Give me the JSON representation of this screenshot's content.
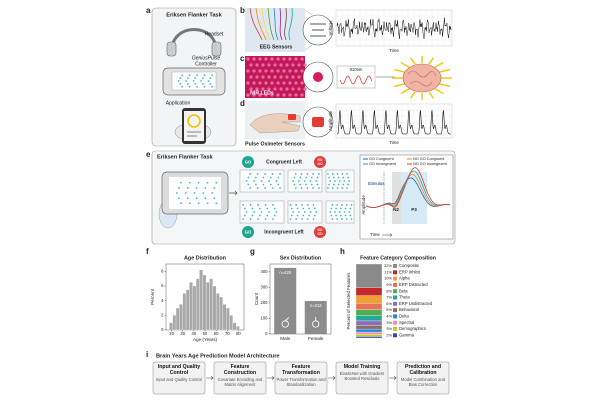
{
  "panel_a": {
    "label": "a",
    "title": "Eriksen Flanker Task",
    "headset": "Headset",
    "controller": [
      "GeniusPulse",
      "Controller"
    ],
    "application": "Application"
  },
  "panel_b": {
    "label": "b",
    "sensor": "EEG Sensors",
    "y_label": "Voltage",
    "x_label": "Time"
  },
  "panel_c": {
    "label": "c",
    "sensor": "NIR LEDs",
    "wavelength": "810nm"
  },
  "panel_d": {
    "label": "d",
    "sensor": "Pulse Oximeter Sensors",
    "y_label": "Amplitude",
    "x_label": "Time"
  },
  "panel_e": {
    "label": "e",
    "title": "Eriksen Flanker Task",
    "go": "GO",
    "no_go": [
      "NO",
      "GO"
    ],
    "congruent": "Congruent Left",
    "incongruent": "Incongruent Left",
    "legend": [
      {
        "name": "GO Congruent",
        "color": "#1565c0"
      },
      {
        "name": "NO GO Congruent",
        "color": "#ef8a17"
      },
      {
        "name": "GO Incongruent",
        "color": "#26a69a"
      },
      {
        "name": "NO GO Incongruent",
        "color": "#e53935"
      }
    ],
    "stimulus": "Stimulus",
    "n2": "N2",
    "p3": "P3",
    "y_label": "Amplitude",
    "x_label": "Time"
  },
  "chart_data": [
    {
      "type": "histogram",
      "panel": "f",
      "title": "Age Distribution",
      "x_label": "Age (Years)",
      "y_label": "Percent",
      "color": "#a9a9a9",
      "bins": [
        18,
        21,
        24,
        27,
        30,
        33,
        36,
        39,
        42,
        45,
        48,
        51,
        54,
        57,
        60,
        63,
        66,
        69,
        72,
        75,
        78,
        81
      ],
      "values": [
        1,
        2,
        3,
        3.5,
        5,
        5.5,
        6.5,
        6,
        7,
        8.2,
        7.5,
        6.5,
        7,
        6,
        5,
        4.5,
        3.5,
        3,
        2,
        1,
        0.5
      ],
      "xlim": [
        15,
        85
      ],
      "xticks": [
        20,
        30,
        40,
        50,
        60,
        70,
        80
      ],
      "ylim": [
        0,
        9
      ],
      "yticks": [
        0,
        2,
        4,
        6,
        8
      ]
    },
    {
      "type": "bar",
      "panel": "g",
      "title": "Sex Distribution",
      "y_label": "Count",
      "color": "#8c8c8c",
      "categories": [
        "Male",
        "Female"
      ],
      "values": [
        425,
        212
      ],
      "value_labels": [
        "n=425",
        "n=212"
      ],
      "ylim": [
        0,
        450
      ],
      "yticks": [
        0,
        100,
        200,
        300,
        400
      ]
    },
    {
      "type": "stacked_bar",
      "panel": "h",
      "title": "Feature Category Composition",
      "y_label": "Percent of Selected Features",
      "ylim": [
        0,
        100
      ],
      "series": [
        {
          "name": "Composite",
          "color": "#8a8a8a"
        },
        {
          "name": "ERP Inhibit",
          "color": "#c62828"
        },
        {
          "name": "Alpha",
          "color": "#f0a030"
        },
        {
          "name": "ERP Distracted",
          "color": "#e5735a"
        },
        {
          "name": "Beta",
          "color": "#4caf50"
        },
        {
          "name": "Theta",
          "color": "#26a69a"
        },
        {
          "name": "ERP Undistracted",
          "color": "#8e6bbf"
        },
        {
          "name": "Behavioral",
          "color": "#8d6e63"
        },
        {
          "name": "Delta",
          "color": "#1e88e5"
        },
        {
          "name": "Spectral",
          "color": "#f48fb1"
        },
        {
          "name": "Demographics",
          "color": "#c0ca33"
        },
        {
          "name": "Gamma",
          "color": "#3949ab"
        }
      ],
      "values": [
        32,
        11,
        10,
        9,
        8,
        7,
        6,
        5,
        4,
        3,
        3,
        2
      ],
      "value_labels": [
        "32%",
        "11%",
        "10%",
        "9%",
        "8%",
        "7%",
        "6%",
        "5%",
        "4%",
        "3%",
        "3%",
        "2%"
      ]
    }
  ],
  "panel_i": {
    "label": "i",
    "title": "Brain Years Age Prediction Model Architecture",
    "steps": [
      {
        "title": "Input and Quality Control",
        "detail": "Input and Quality Control"
      },
      {
        "title": "Feature Construction",
        "detail": "Covariate Encoding and Matrix Alignment"
      },
      {
        "title": "Feature Transformation",
        "detail": "Power Transformation and Standardization"
      },
      {
        "title": "Model Training",
        "detail": "ElasticNet with Gradient Boosted Residuals"
      },
      {
        "title": "Prediction and Calibration",
        "detail": "Model Combination and Bias Correction"
      }
    ]
  }
}
